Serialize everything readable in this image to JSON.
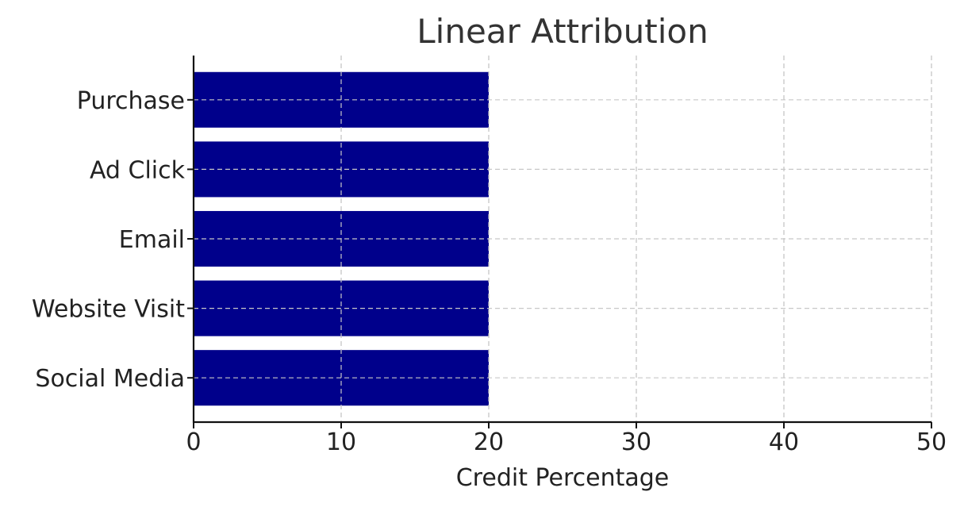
{
  "chart_data": {
    "type": "bar",
    "orientation": "horizontal",
    "title": "Linear Attribution",
    "xlabel": "Credit Percentage",
    "ylabel": "",
    "categories": [
      "Social Media",
      "Website Visit",
      "Email",
      "Ad Click",
      "Purchase"
    ],
    "values": [
      20,
      20,
      20,
      20,
      20
    ],
    "xlim": [
      0,
      50
    ],
    "xticks": [
      0,
      10,
      20,
      30,
      40,
      50
    ],
    "grid": true,
    "bar_color": "#00008b"
  }
}
